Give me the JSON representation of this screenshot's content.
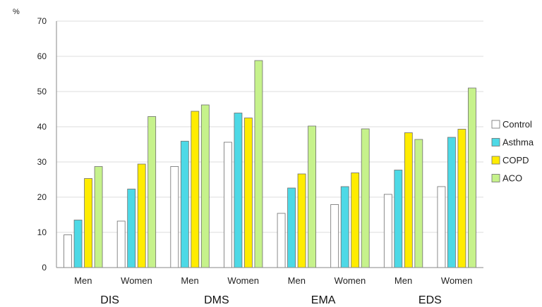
{
  "chart_data": {
    "type": "bar",
    "ylabel": "%",
    "ylim": [
      0,
      70
    ],
    "yticks": [
      0,
      10,
      20,
      30,
      40,
      50,
      60,
      70
    ],
    "grid": "horizontal",
    "legend_position": "right",
    "groups": [
      "DIS",
      "DMS",
      "EMA",
      "EDS"
    ],
    "subcategories": [
      "Men",
      "Women"
    ],
    "categories": [
      "Men",
      "Women",
      "Men",
      "Women",
      "Men",
      "Women",
      "Men",
      "Women"
    ],
    "series": [
      {
        "name": "Control",
        "color": "#ffffff",
        "values": [
          9.3,
          13.2,
          28.7,
          35.6,
          15.4,
          17.9,
          20.8,
          23.0
        ]
      },
      {
        "name": "Asthma",
        "color": "#4dd9e6",
        "values": [
          13.5,
          22.3,
          35.9,
          43.9,
          22.6,
          23.0,
          27.7,
          37.0
        ]
      },
      {
        "name": "COPD",
        "color": "#ffec00",
        "values": [
          25.3,
          29.4,
          44.4,
          42.5,
          26.6,
          26.9,
          38.3,
          39.3
        ]
      },
      {
        "name": "ACO",
        "color": "#c6f28b",
        "values": [
          28.7,
          42.9,
          46.2,
          58.8,
          40.2,
          39.4,
          36.4,
          51.0
        ]
      }
    ]
  }
}
